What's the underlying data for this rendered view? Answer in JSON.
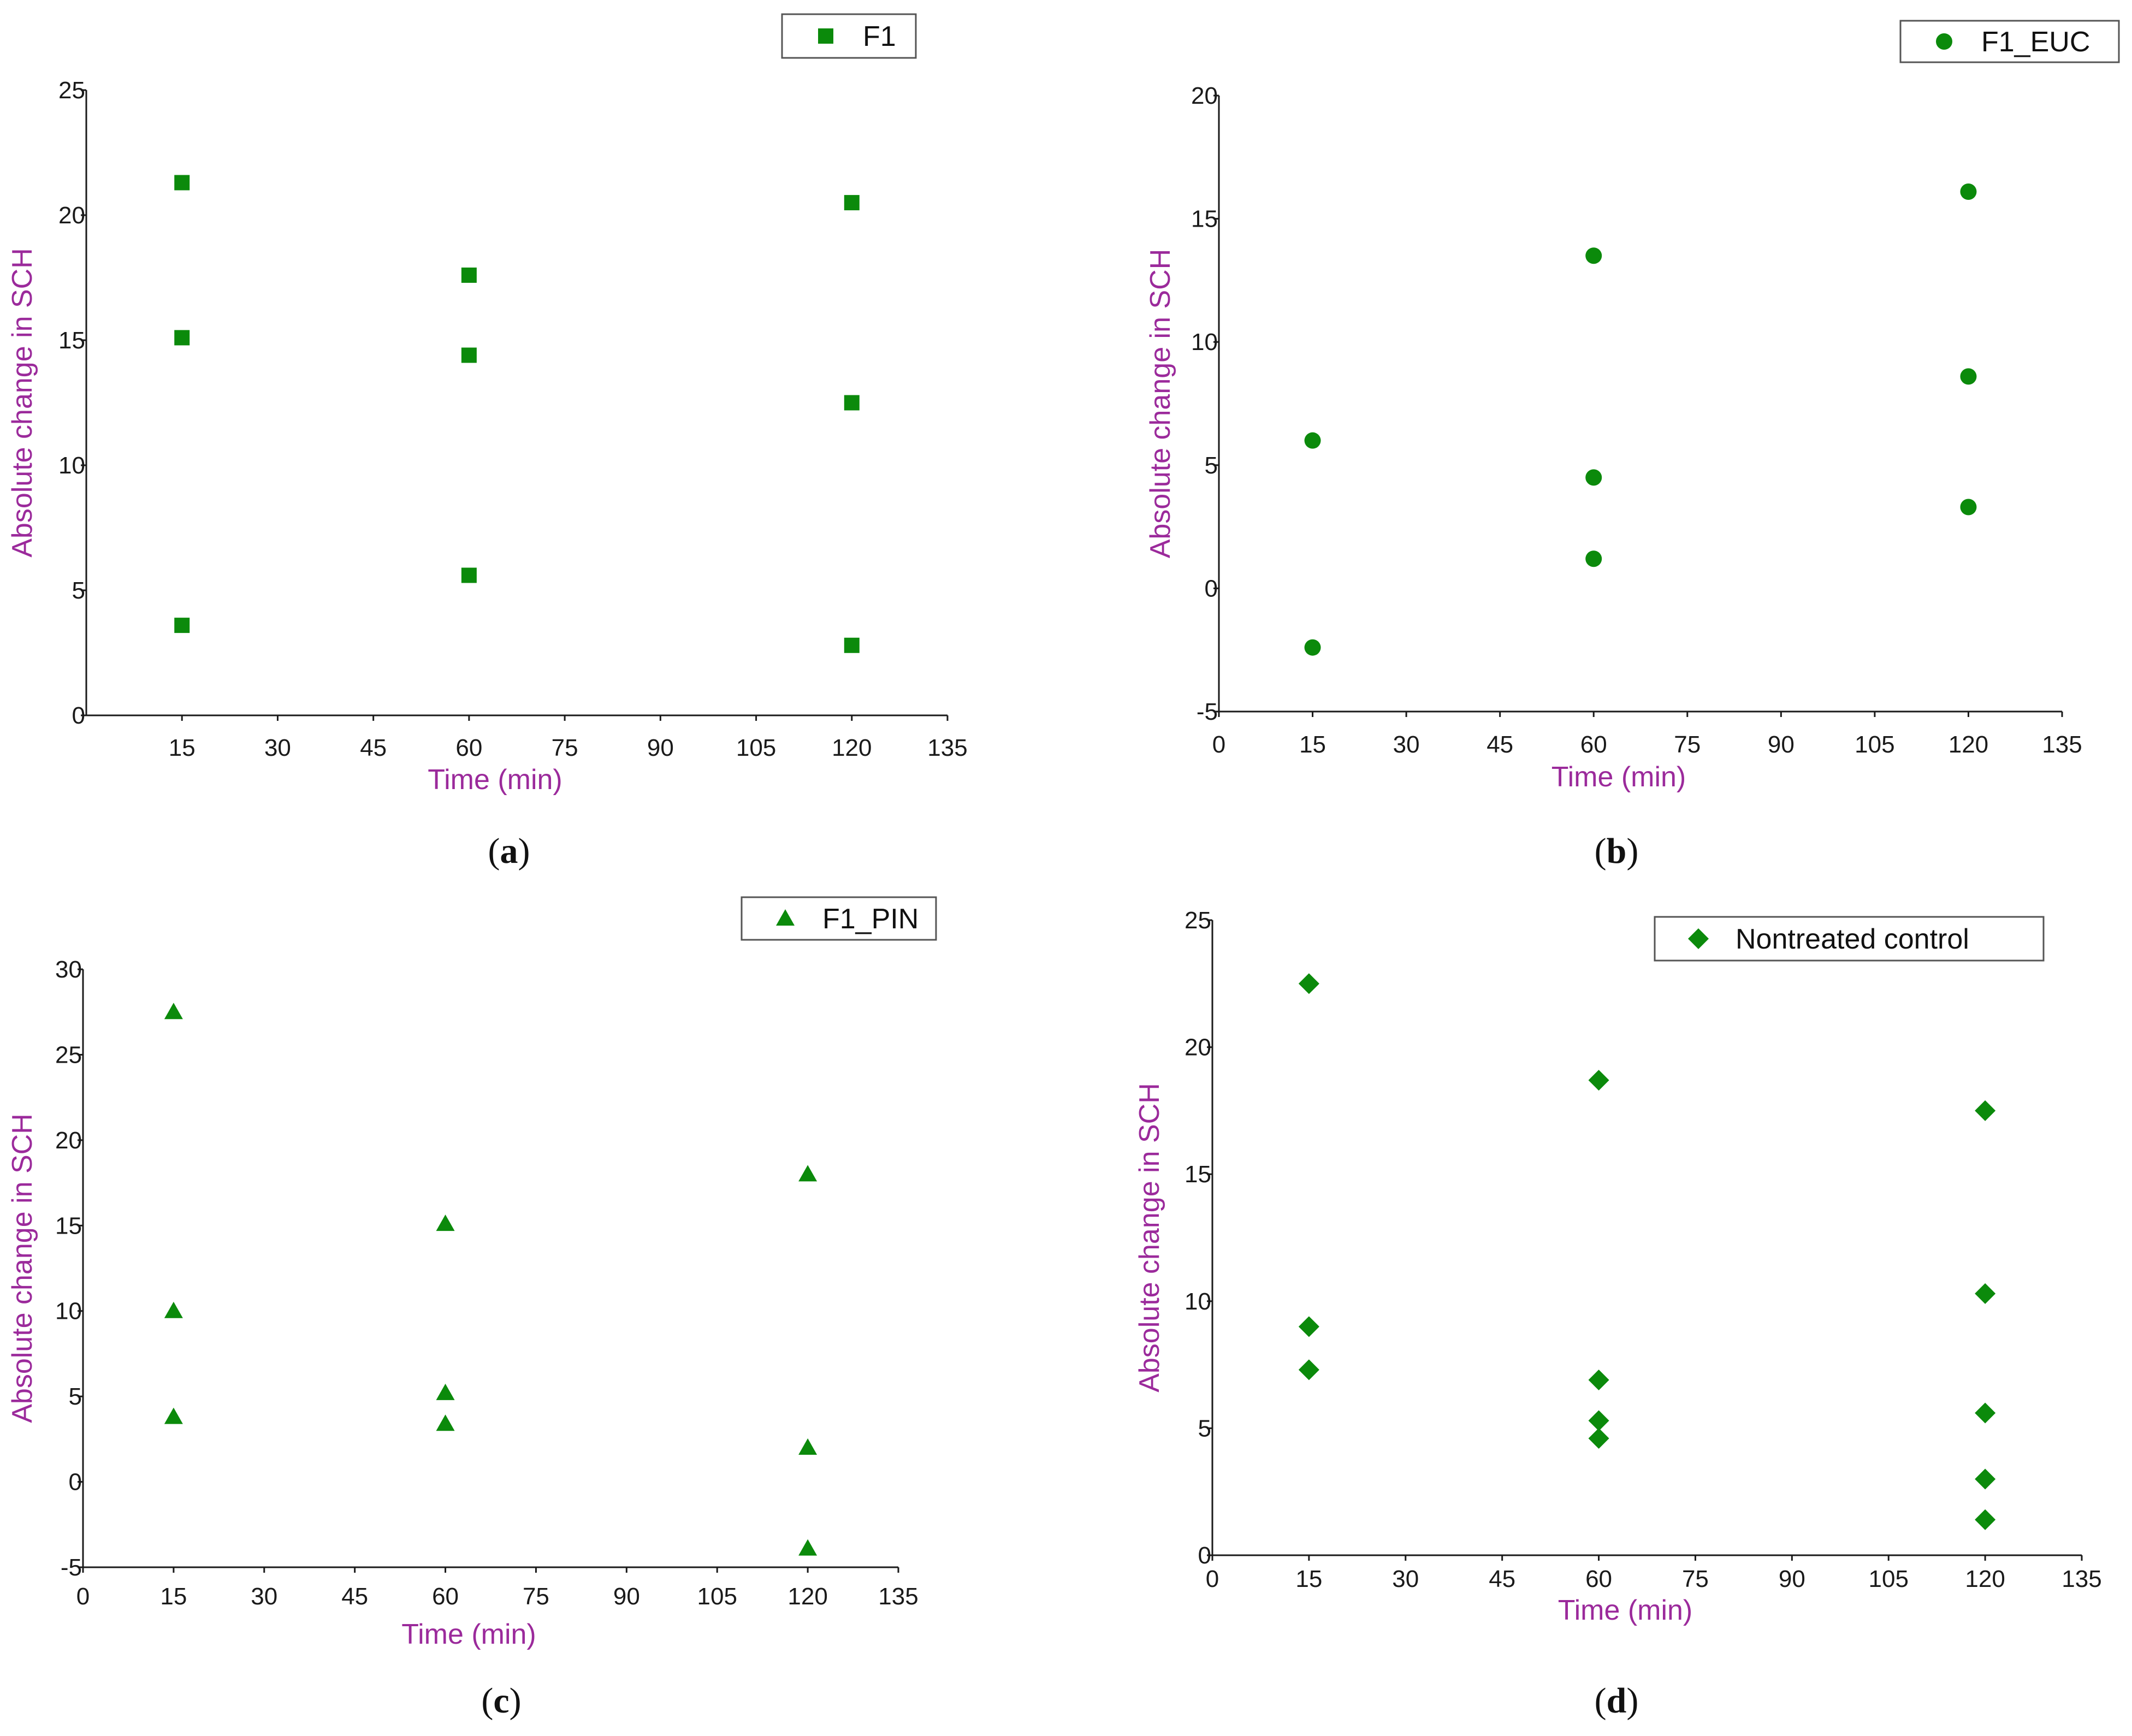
{
  "colors": {
    "marker": "#0b8a0b",
    "axis_title": "#9b2a9b",
    "axis": "#1a1a1a"
  },
  "chart_data": [
    {
      "panel": "a",
      "type": "scatter",
      "marker": "square",
      "legend": "F1",
      "legend_position": "top-right",
      "xlabel": "Time (min)",
      "ylabel": "Absolute change in SCH",
      "xlim": [
        0,
        135
      ],
      "ylim": [
        0,
        25
      ],
      "xticks": [
        15,
        30,
        45,
        60,
        75,
        90,
        105,
        120,
        135
      ],
      "yticks": [
        0,
        5,
        10,
        15,
        20,
        25
      ],
      "points": [
        {
          "x": 15,
          "y": 21.3
        },
        {
          "x": 15,
          "y": 15.1
        },
        {
          "x": 15,
          "y": 3.6
        },
        {
          "x": 60,
          "y": 17.6
        },
        {
          "x": 60,
          "y": 14.4
        },
        {
          "x": 60,
          "y": 5.6
        },
        {
          "x": 120,
          "y": 20.5
        },
        {
          "x": 120,
          "y": 12.5
        },
        {
          "x": 120,
          "y": 2.8
        }
      ]
    },
    {
      "panel": "b",
      "type": "scatter",
      "marker": "circle",
      "legend": "F1_EUC",
      "legend_position": "top-right",
      "xlabel": "Time (min)",
      "ylabel": "Absolute change in SCH",
      "xlim": [
        0,
        135
      ],
      "ylim": [
        -5,
        20
      ],
      "xticks": [
        0,
        15,
        30,
        45,
        60,
        75,
        90,
        105,
        120,
        135
      ],
      "yticks": [
        -5,
        0,
        5,
        10,
        15,
        20
      ],
      "points": [
        {
          "x": 15,
          "y": 6.0
        },
        {
          "x": 15,
          "y": -2.4
        },
        {
          "x": 60,
          "y": 13.5
        },
        {
          "x": 60,
          "y": 4.5
        },
        {
          "x": 60,
          "y": 1.2
        },
        {
          "x": 120,
          "y": 16.1
        },
        {
          "x": 120,
          "y": 8.6
        },
        {
          "x": 120,
          "y": 3.3
        }
      ]
    },
    {
      "panel": "c",
      "type": "scatter",
      "marker": "triangle",
      "legend": "F1_PIN",
      "legend_position": "top-right",
      "xlabel": "Time (min)",
      "ylabel": "Absolute change in SCH",
      "xlim": [
        0,
        135
      ],
      "ylim": [
        -5,
        30
      ],
      "xticks": [
        0,
        15,
        30,
        45,
        60,
        75,
        90,
        105,
        120,
        135
      ],
      "yticks": [
        -5,
        0,
        5,
        10,
        15,
        20,
        25,
        30
      ],
      "points": [
        {
          "x": 15,
          "y": 27.5
        },
        {
          "x": 15,
          "y": 10.0
        },
        {
          "x": 15,
          "y": 3.8
        },
        {
          "x": 60,
          "y": 15.1
        },
        {
          "x": 60,
          "y": 5.2
        },
        {
          "x": 60,
          "y": 3.4
        },
        {
          "x": 120,
          "y": 18.0
        },
        {
          "x": 120,
          "y": 2.0
        },
        {
          "x": 120,
          "y": -3.9
        }
      ]
    },
    {
      "panel": "d",
      "type": "scatter",
      "marker": "diamond",
      "legend": "Nontreated control",
      "legend_position": "top-right",
      "xlabel": "Time (min)",
      "ylabel": "Absolute change in SCH",
      "xlim": [
        0,
        135
      ],
      "ylim": [
        0,
        25
      ],
      "xticks": [
        0,
        15,
        30,
        45,
        60,
        75,
        90,
        105,
        120,
        135
      ],
      "yticks": [
        0,
        5,
        10,
        15,
        20,
        25
      ],
      "points": [
        {
          "x": 15,
          "y": 22.5
        },
        {
          "x": 15,
          "y": 9.0
        },
        {
          "x": 15,
          "y": 7.3
        },
        {
          "x": 60,
          "y": 18.7
        },
        {
          "x": 60,
          "y": 6.9
        },
        {
          "x": 60,
          "y": 5.3
        },
        {
          "x": 60,
          "y": 4.6
        },
        {
          "x": 120,
          "y": 17.5
        },
        {
          "x": 120,
          "y": 10.3
        },
        {
          "x": 120,
          "y": 5.6
        },
        {
          "x": 120,
          "y": 3.0
        },
        {
          "x": 120,
          "y": 1.4
        }
      ]
    }
  ],
  "panel_labels": [
    {
      "open": "(",
      "letter": "a",
      "close": ")"
    },
    {
      "open": "(",
      "letter": "b",
      "close": ")"
    },
    {
      "open": "(",
      "letter": "c",
      "close": ")"
    },
    {
      "open": "(",
      "letter": "d",
      "close": ")"
    }
  ]
}
